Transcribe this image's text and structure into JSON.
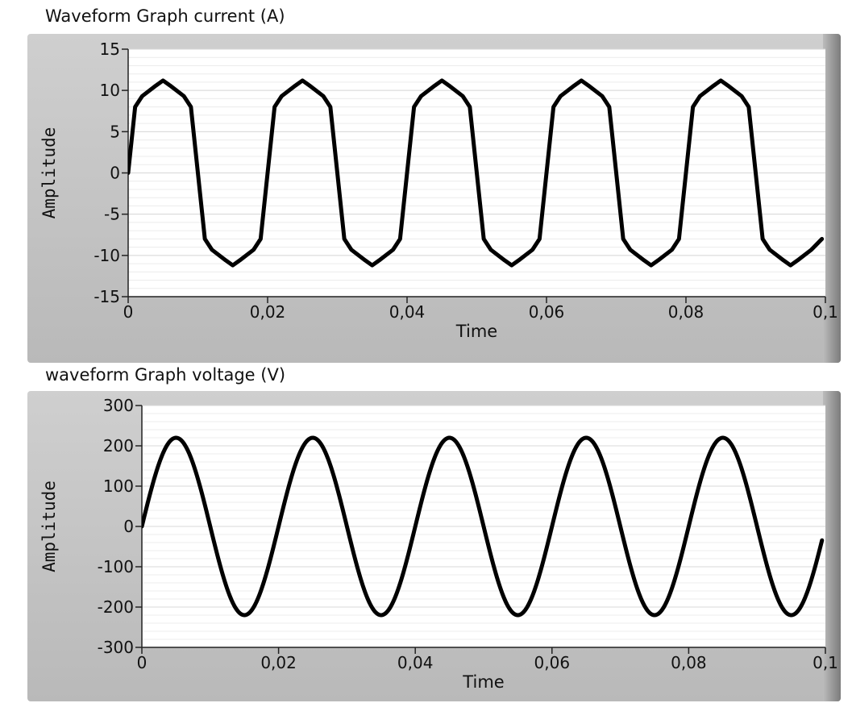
{
  "chart_data": [
    {
      "type": "line",
      "title": "Waveform Graph current (A)",
      "xlabel": "Time",
      "ylabel": "Amplitude",
      "xlim": [
        0,
        0.1
      ],
      "ylim": [
        -15,
        15
      ],
      "x_ticks": [
        "0",
        "0,02",
        "0,04",
        "0,06",
        "0,08",
        "0,1"
      ],
      "y_ticks": [
        "15",
        "10",
        "5",
        "0",
        "-5",
        "-10",
        "-15"
      ],
      "y_tick_values": [
        15,
        10,
        5,
        0,
        -5,
        -10,
        -15
      ],
      "x_tick_values": [
        0,
        0.02,
        0.04,
        0.06,
        0.08,
        0.1
      ],
      "grid": true,
      "series": [
        {
          "color": "#000000",
          "x": [
            0.0,
            0.001,
            0.002,
            0.004,
            0.005,
            0.006,
            0.008,
            0.009,
            0.01,
            0.011,
            0.012,
            0.014,
            0.015,
            0.016,
            0.018,
            0.019,
            0.02,
            0.021,
            0.022,
            0.024,
            0.025,
            0.026,
            0.028,
            0.029,
            0.03,
            0.031,
            0.032,
            0.034,
            0.035,
            0.036,
            0.038,
            0.039,
            0.04,
            0.041,
            0.042,
            0.044,
            0.045,
            0.046,
            0.048,
            0.049,
            0.05,
            0.051,
            0.052,
            0.054,
            0.055,
            0.056,
            0.058,
            0.059,
            0.06,
            0.061,
            0.062,
            0.064,
            0.065,
            0.066,
            0.068,
            0.069,
            0.07,
            0.071,
            0.072,
            0.074,
            0.075,
            0.076,
            0.078,
            0.079,
            0.08,
            0.081,
            0.082,
            0.084,
            0.085,
            0.086,
            0.088,
            0.089,
            0.09,
            0.091,
            0.092,
            0.094,
            0.095,
            0.096,
            0.098,
            0.0995
          ],
          "y": [
            0,
            8.0,
            9.3,
            10.6,
            11.2,
            10.6,
            9.3,
            8.0,
            0,
            -8.0,
            -9.3,
            -10.6,
            -11.2,
            -10.6,
            -9.3,
            -8.0,
            0,
            8.0,
            9.3,
            10.6,
            11.2,
            10.6,
            9.3,
            8.0,
            0,
            -8.0,
            -9.3,
            -10.6,
            -11.2,
            -10.6,
            -9.3,
            -8.0,
            0,
            8.0,
            9.3,
            10.6,
            11.2,
            10.6,
            9.3,
            8.0,
            0,
            -8.0,
            -9.3,
            -10.6,
            -11.2,
            -10.6,
            -9.3,
            -8.0,
            0,
            8.0,
            9.3,
            10.6,
            11.2,
            10.6,
            9.3,
            8.0,
            0,
            -8.0,
            -9.3,
            -10.6,
            -11.2,
            -10.6,
            -9.3,
            -8.0,
            0,
            8.0,
            9.3,
            10.6,
            11.2,
            10.6,
            9.3,
            8.0,
            0,
            -8.0,
            -9.3,
            -10.6,
            -11.2,
            -10.6,
            -9.3,
            -8.0
          ]
        }
      ]
    },
    {
      "type": "line",
      "title": "waveform Graph voltage (V)",
      "xlabel": "Time",
      "ylabel": "Amplitude",
      "xlim": [
        0,
        0.1
      ],
      "ylim": [
        -300,
        300
      ],
      "x_ticks": [
        "0",
        "0,02",
        "0,04",
        "0,06",
        "0,08",
        "0,1"
      ],
      "y_ticks": [
        "300",
        "200",
        "100",
        "0",
        "-100",
        "-200",
        "-300"
      ],
      "y_tick_values": [
        300,
        200,
        100,
        0,
        -100,
        -200,
        -300
      ],
      "x_tick_values": [
        0,
        0.02,
        0.04,
        0.06,
        0.08,
        0.1
      ],
      "grid": true,
      "series": [
        {
          "color": "#000000",
          "amplitude": 220,
          "frequency_hz": 50,
          "x_end": 0.0995
        }
      ]
    }
  ]
}
